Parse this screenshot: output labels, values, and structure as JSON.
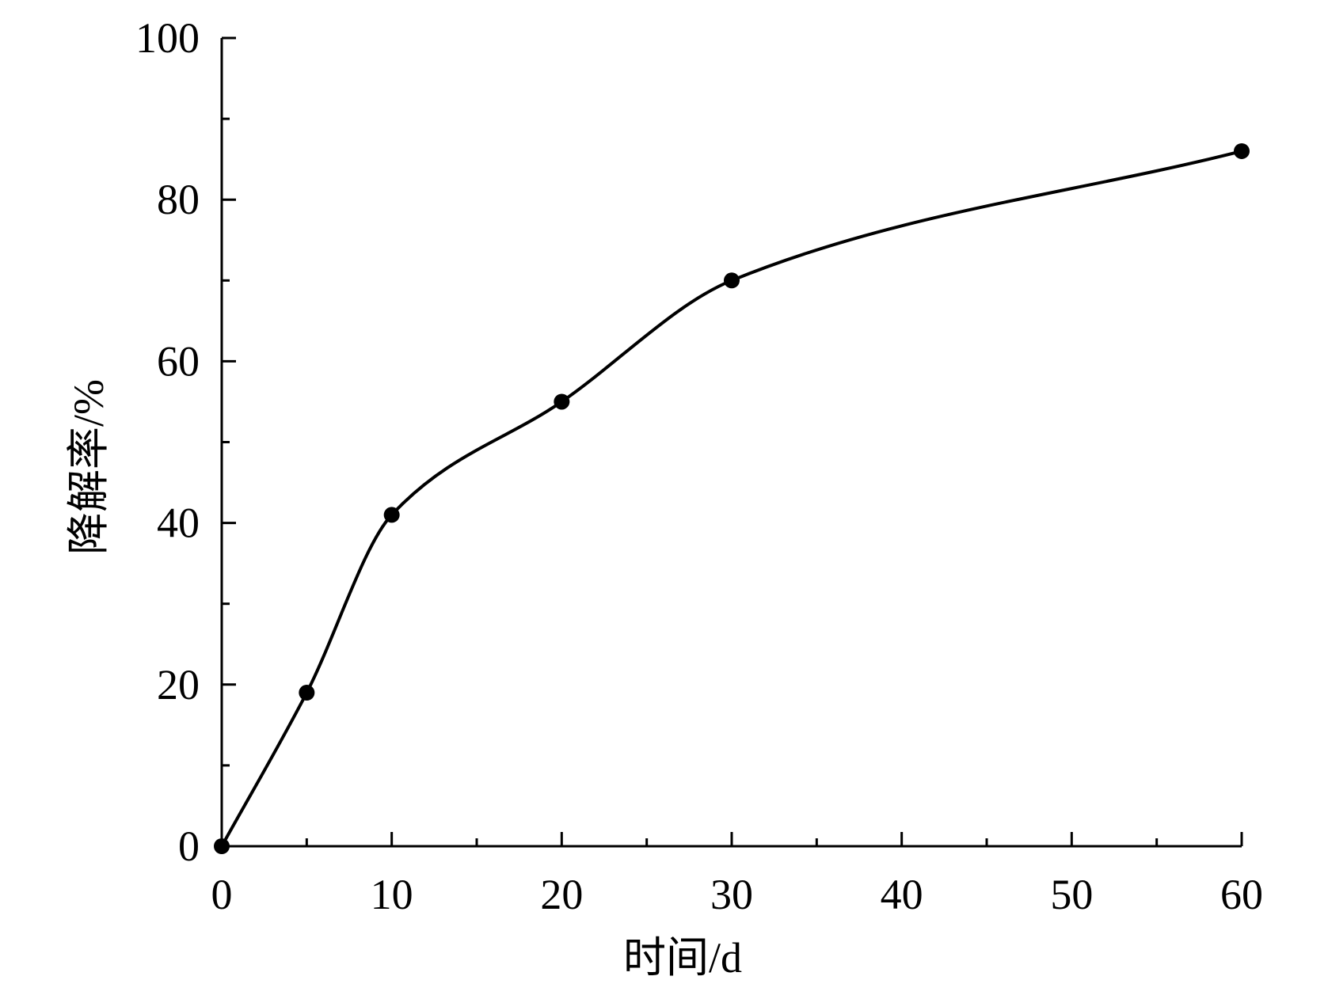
{
  "chart_data": {
    "type": "line",
    "title": "",
    "xlabel": "时间/d",
    "ylabel": "降解率/%",
    "xlim": [
      0,
      60
    ],
    "ylim": [
      0,
      100
    ],
    "x_ticks": [
      0,
      10,
      20,
      30,
      40,
      50,
      60
    ],
    "x_tick_labels": [
      "0",
      "10",
      "20",
      "30",
      "40",
      "50",
      "60"
    ],
    "x_minor_ticks": [
      5,
      15,
      25,
      35,
      45,
      55
    ],
    "y_ticks": [
      0,
      20,
      40,
      60,
      80,
      100
    ],
    "y_tick_labels": [
      "0",
      "20",
      "40",
      "60",
      "80",
      "100"
    ],
    "y_minor_ticks": [
      10,
      30,
      50,
      70,
      90
    ],
    "grid": false,
    "legend": "none",
    "series": [
      {
        "x": [
          0,
          5,
          10,
          20,
          30,
          60
        ],
        "y": [
          0,
          19,
          41,
          55,
          70,
          86
        ],
        "color": "#000000",
        "marker": "filled-circle",
        "line": "smooth"
      }
    ]
  }
}
